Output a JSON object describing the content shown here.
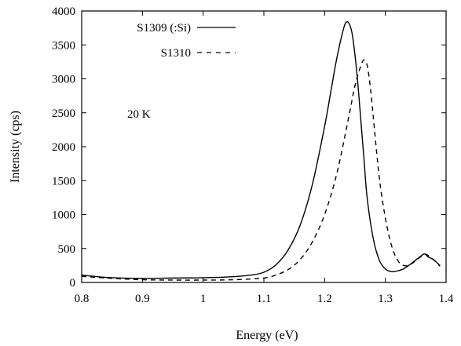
{
  "chart_data": {
    "type": "line",
    "xlabel": "Energy (eV)",
    "ylabel": "Intensity (cps)",
    "xlim": [
      0.8,
      1.4
    ],
    "ylim": [
      0,
      4000
    ],
    "x_ticks": [
      0.8,
      0.9,
      1,
      1.1,
      1.2,
      1.3,
      1.4
    ],
    "x_tick_labels": [
      "0.8",
      "0.9",
      "1",
      "1.1",
      "1.2",
      "1.3",
      "1.4"
    ],
    "y_ticks": [
      0,
      500,
      1000,
      1500,
      2000,
      2500,
      3000,
      3500,
      4000
    ],
    "y_tick_labels": [
      "0",
      "500",
      "1000",
      "1500",
      "2000",
      "2500",
      "3000",
      "3500",
      "4000"
    ],
    "grid": false,
    "legend_position": "top-left",
    "annotations": [
      {
        "text": "20 K",
        "x": 0.89,
        "y": 2500
      }
    ],
    "series": [
      {
        "name": "S1309 (:Si)",
        "style": "solid",
        "color": "#000000",
        "x": [
          0.8,
          0.82,
          0.85,
          0.9,
          0.95,
          1.0,
          1.05,
          1.08,
          1.1,
          1.12,
          1.14,
          1.16,
          1.18,
          1.2,
          1.21,
          1.22,
          1.23,
          1.235,
          1.24,
          1.245,
          1.25,
          1.255,
          1.26,
          1.265,
          1.27,
          1.28,
          1.29,
          1.3,
          1.31,
          1.32,
          1.33,
          1.34,
          1.35,
          1.36,
          1.365,
          1.37,
          1.38,
          1.39
        ],
        "y": [
          110,
          90,
          70,
          60,
          65,
          70,
          85,
          110,
          150,
          260,
          480,
          850,
          1450,
          2300,
          2800,
          3300,
          3700,
          3830,
          3820,
          3680,
          3350,
          2900,
          2350,
          1800,
          1250,
          650,
          330,
          200,
          160,
          170,
          200,
          260,
          330,
          400,
          420,
          380,
          330,
          250
        ]
      },
      {
        "name": "S1310",
        "style": "dashed",
        "color": "#000000",
        "x": [
          0.8,
          0.85,
          0.9,
          0.95,
          1.0,
          1.05,
          1.1,
          1.12,
          1.14,
          1.16,
          1.18,
          1.2,
          1.22,
          1.24,
          1.25,
          1.26,
          1.265,
          1.27,
          1.275,
          1.28,
          1.29,
          1.3,
          1.31,
          1.32,
          1.33,
          1.34,
          1.35,
          1.36,
          1.365,
          1.37,
          1.38,
          1.39
        ],
        "y": [
          90,
          60,
          40,
          35,
          35,
          40,
          65,
          110,
          190,
          340,
          600,
          1000,
          1600,
          2450,
          2900,
          3200,
          3280,
          3200,
          2900,
          2450,
          1550,
          950,
          550,
          330,
          250,
          260,
          320,
          390,
          420,
          400,
          330,
          240
        ]
      }
    ]
  }
}
